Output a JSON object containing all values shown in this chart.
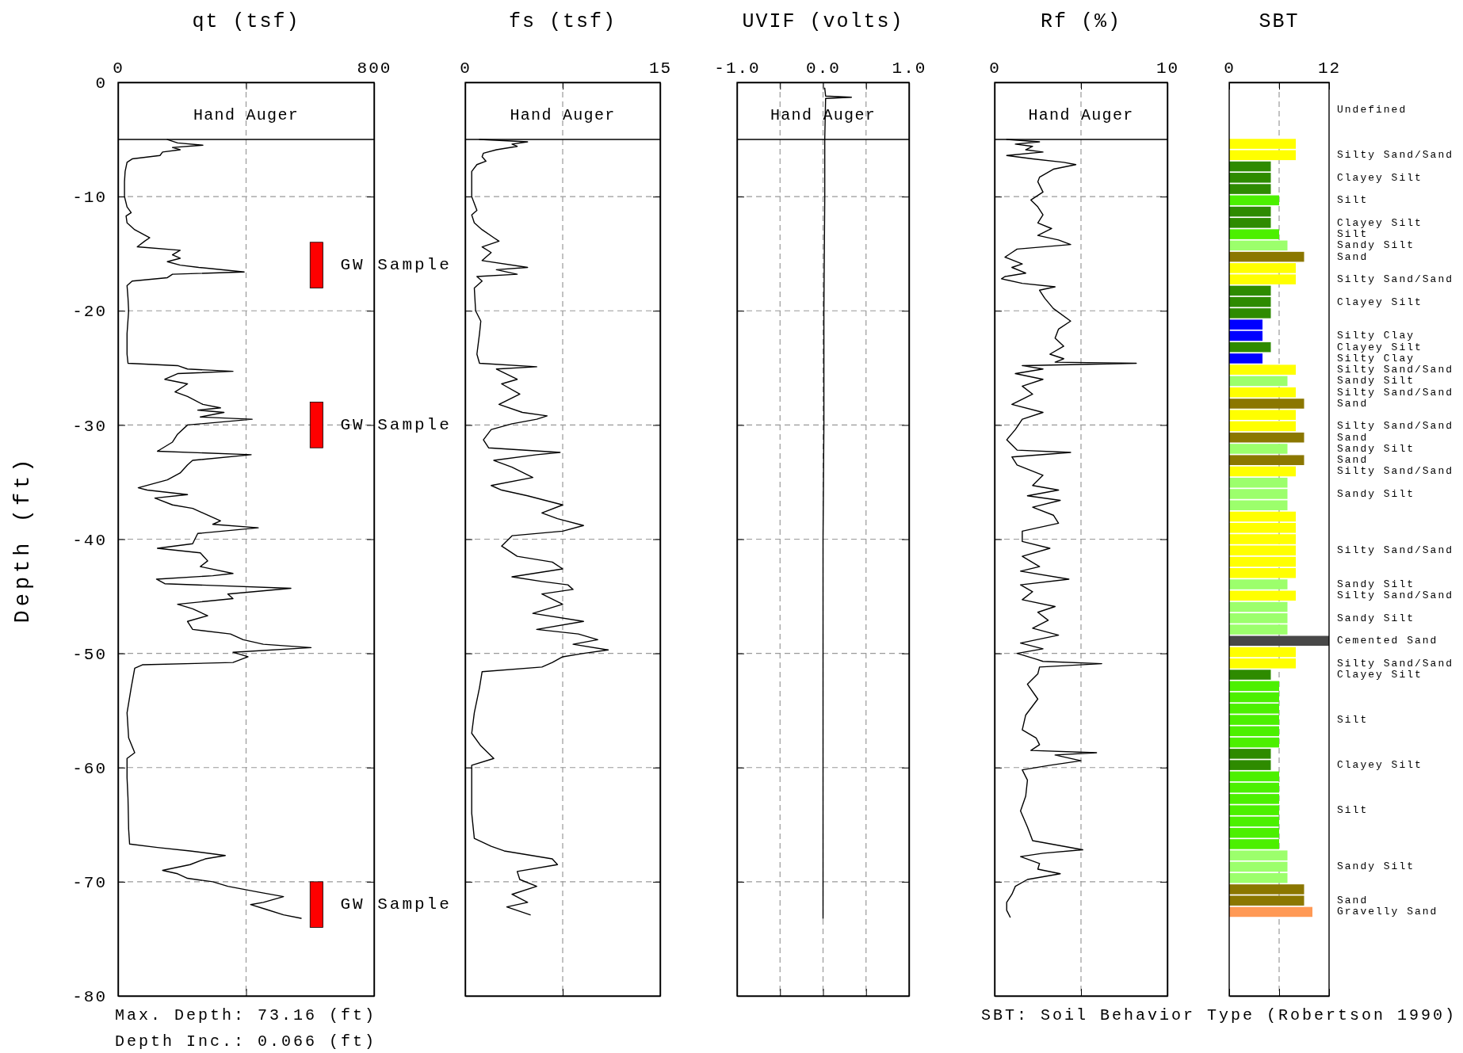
{
  "chart_data": [
    {
      "type": "line",
      "orientation": "horizontal",
      "title": "qt (tsf)",
      "ylabel": "Depth (ft)",
      "xlim": [
        0,
        800
      ],
      "xticks": [
        0,
        {
          "value": 400,
          "label": null
        },
        800
      ],
      "ylim": [
        -80,
        0
      ],
      "yticks": [
        0,
        -10,
        -20,
        -30,
        -40,
        -50,
        -60,
        -70,
        -80
      ],
      "grid": true,
      "series": [
        {
          "color": "#000000",
          "x": [
            -5.0,
            -5.3,
            -5.5,
            -5.7,
            -5.9,
            -6.1,
            -6.4,
            -6.7,
            -7.0,
            -7.8,
            -8.7,
            -10.0,
            -10.9,
            -11.4,
            -11.7,
            -12.3,
            -12.9,
            -13.6,
            -13.9,
            -14.4,
            -14.7,
            -15.1,
            -15.4,
            -15.7,
            -16.0,
            -16.2,
            -16.6,
            -16.8,
            -17.1,
            -17.4,
            -17.8,
            -18.9,
            -20.0,
            -22.0,
            -23.8,
            -24.6,
            -24.8,
            -25.1,
            -25.3,
            -25.5,
            -26.0,
            -26.4,
            -27.1,
            -27.5,
            -28.2,
            -28.5,
            -28.7,
            -28.9,
            -29.3,
            -29.5,
            -30.0,
            -30.8,
            -31.5,
            -32.3,
            -32.6,
            -33.1,
            -33.5,
            -34.2,
            -34.8,
            -35.5,
            -35.7,
            -36.1,
            -36.4,
            -37.0,
            -37.3,
            -37.9,
            -38.4,
            -38.7,
            -39.0,
            -39.5,
            -40.4,
            -40.8,
            -41.2,
            -41.9,
            -42.4,
            -43.0,
            -43.2,
            -43.5,
            -43.9,
            -44.3,
            -44.8,
            -45.2,
            -45.7,
            -46.1,
            -46.7,
            -47.2,
            -47.9,
            -48.3,
            -48.8,
            -49.2,
            -49.5,
            -49.9,
            -50.3,
            -50.8,
            -51.0,
            -51.3,
            -53.0,
            -55.2,
            -57.4,
            -58.7,
            -59.2,
            -60.9,
            -62.7,
            -65.4,
            -66.7,
            -67.0,
            -67.3,
            -67.7,
            -68.0,
            -68.5,
            -69.0,
            -69.3,
            -69.7,
            -70.0,
            -70.4,
            -70.9,
            -71.3,
            -71.8,
            -72.0,
            -72.4,
            -72.9,
            -73.2
          ],
          "values": [
            154,
            186,
            265,
            170,
            194,
            139,
            131,
            44,
            28,
            22,
            20,
            20,
            28,
            41,
            25,
            28,
            52,
            99,
            83,
            60,
            194,
            170,
            194,
            154,
            194,
            252,
            394,
            170,
            154,
            44,
            28,
            31,
            33,
            28,
            28,
            31,
            186,
            217,
            359,
            186,
            146,
            217,
            178,
            217,
            265,
            320,
            249,
            331,
            257,
            419,
            217,
            186,
            170,
            123,
            416,
            233,
            217,
            194,
            154,
            63,
            91,
            217,
            115,
            170,
            233,
            280,
            320,
            296,
            438,
            249,
            233,
            123,
            257,
            280,
            257,
            359,
            296,
            120,
            146,
            540,
            343,
            359,
            186,
            233,
            280,
            217,
            233,
            351,
            391,
            454,
            603,
            359,
            406,
            359,
            76,
            52,
            41,
            28,
            33,
            52,
            28,
            28,
            31,
            33,
            36,
            123,
            225,
            335,
            272,
            225,
            139,
            186,
            217,
            296,
            343,
            438,
            517,
            454,
            414,
            461,
            517,
            572
          ]
        }
      ],
      "ref_lines": [
        {
          "axis": "y",
          "value": -5,
          "label": "Hand Auger"
        }
      ],
      "bands": [
        {
          "axis": "y",
          "from": -14,
          "to": -18,
          "label": "GW Sample",
          "color": "#ff0000"
        },
        {
          "axis": "y",
          "from": -28,
          "to": -32,
          "label": "GW Sample",
          "color": "#ff0000"
        },
        {
          "axis": "y",
          "from": -70,
          "to": -74,
          "label": "GW Sample",
          "color": "#ff0000"
        }
      ],
      "annotations": [
        "Max. Depth: 73.16 (ft)",
        "Depth Inc.: 0.066 (ft)"
      ]
    },
    {
      "type": "line",
      "orientation": "horizontal",
      "title": "fs (tsf)",
      "xlim": [
        0,
        15
      ],
      "xticks": [
        0,
        {
          "value": 7.5,
          "label": null
        },
        15
      ],
      "ylim": [
        -80,
        0
      ],
      "yticks": [
        0,
        -10,
        -20,
        -30,
        -40,
        -50,
        -60,
        -70,
        -80
      ],
      "tick_labels": "x",
      "grid": true,
      "series": [
        {
          "color": "#000000",
          "x": [
            -5.0,
            -5.2,
            -5.4,
            -5.6,
            -5.9,
            -6.2,
            -6.5,
            -6.9,
            -7.2,
            -7.8,
            -8.7,
            -10.0,
            -11.2,
            -11.6,
            -12.3,
            -12.9,
            -13.6,
            -13.9,
            -14.4,
            -14.9,
            -15.6,
            -16.2,
            -16.4,
            -16.8,
            -17.0,
            -17.4,
            -18.0,
            -20.0,
            -20.9,
            -22.0,
            -23.8,
            -24.6,
            -24.9,
            -25.1,
            -26.0,
            -26.4,
            -27.3,
            -28.2,
            -28.9,
            -29.2,
            -29.5,
            -29.9,
            -30.4,
            -31.3,
            -32.0,
            -32.4,
            -32.6,
            -33.1,
            -33.7,
            -34.6,
            -35.3,
            -35.7,
            -36.2,
            -37.0,
            -37.7,
            -38.2,
            -38.8,
            -39.3,
            -39.7,
            -40.6,
            -41.5,
            -42.0,
            -42.6,
            -43.3,
            -43.7,
            -44.0,
            -44.4,
            -44.8,
            -45.7,
            -46.5,
            -47.2,
            -47.9,
            -48.3,
            -48.8,
            -49.2,
            -49.7,
            -50.0,
            -50.3,
            -50.8,
            -51.2,
            -51.6,
            -53.0,
            -55.2,
            -57.0,
            -58.1,
            -59.2,
            -59.8,
            -61.4,
            -64.0,
            -66.2,
            -66.9,
            -67.3,
            -68.0,
            -68.5,
            -69.1,
            -69.8,
            -70.4,
            -71.1,
            -71.8,
            -72.2,
            -72.9
          ],
          "values": [
            1.1,
            4.8,
            3.6,
            4.0,
            2.4,
            1.4,
            1.3,
            1.6,
            0.9,
            0.5,
            0.5,
            0.5,
            0.9,
            0.5,
            0.7,
            1.3,
            2.2,
            2.6,
            1.3,
            2.0,
            1.3,
            4.8,
            2.4,
            4.0,
            0.9,
            1.3,
            0.7,
            0.8,
            1.2,
            1.1,
            0.9,
            1.1,
            5.5,
            2.4,
            4.0,
            2.8,
            4.2,
            2.6,
            4.4,
            6.3,
            5.5,
            3.6,
            2.0,
            1.4,
            1.8,
            7.3,
            5.5,
            2.2,
            3.6,
            5.2,
            2.0,
            2.8,
            4.8,
            7.5,
            5.9,
            7.1,
            9.1,
            7.5,
            3.6,
            2.8,
            4.0,
            6.7,
            7.5,
            3.6,
            5.9,
            7.9,
            8.3,
            5.9,
            7.5,
            5.2,
            9.1,
            5.5,
            8.7,
            10.2,
            8.3,
            11.0,
            9.1,
            7.5,
            6.7,
            5.9,
            1.3,
            1.1,
            0.7,
            0.5,
            1.2,
            2.2,
            0.5,
            0.5,
            0.5,
            0.7,
            2.0,
            3.0,
            6.7,
            7.1,
            4.0,
            4.2,
            5.5,
            3.6,
            4.8,
            3.2,
            5.0
          ]
        }
      ],
      "ref_lines": [
        {
          "axis": "y",
          "value": -5,
          "label": "Hand Auger"
        }
      ]
    },
    {
      "type": "line",
      "orientation": "horizontal",
      "title": "UVIF (volts)",
      "xlim": [
        -1,
        1
      ],
      "xticks": [
        {
          "value": -1,
          "label": "-1.0"
        },
        {
          "value": -0.5,
          "label": null
        },
        {
          "value": 0,
          "label": "0.0"
        },
        {
          "value": 0.5,
          "label": null
        },
        {
          "value": 1,
          "label": "1.0"
        }
      ],
      "ylim": [
        -80,
        0
      ],
      "yticks": [
        0,
        -10,
        -20,
        -30,
        -40,
        -50,
        -60,
        -70,
        -80
      ],
      "tick_labels": "x",
      "grid": true,
      "series": [
        {
          "color": "#000000",
          "x": [
            -0.5,
            -1.2,
            -1.3,
            -1.4,
            -5.0,
            -10.0,
            -20.0,
            -30.0,
            -40.0,
            -50.0,
            -60.0,
            -73.2
          ],
          "values": [
            0.02,
            0.03,
            0.33,
            0.03,
            0.02,
            0.02,
            0.01,
            0.01,
            0.0,
            0.0,
            0.0,
            0.0
          ]
        }
      ],
      "ref_lines": [
        {
          "axis": "y",
          "value": -5,
          "label": "Hand Auger"
        }
      ]
    },
    {
      "type": "line",
      "orientation": "horizontal",
      "title": "Rf (%)",
      "xlim": [
        0,
        10
      ],
      "xticks": [
        0,
        {
          "value": 5,
          "label": null
        },
        10
      ],
      "ylim": [
        -80,
        0
      ],
      "yticks": [
        0,
        -10,
        -20,
        -30,
        -40,
        -50,
        -60,
        -70,
        -80
      ],
      "tick_labels": "x",
      "grid": true,
      "series": [
        {
          "color": "#000000",
          "x": [
            -5.0,
            -5.2,
            -5.4,
            -5.6,
            -5.9,
            -6.1,
            -6.4,
            -6.7,
            -7.0,
            -7.2,
            -7.6,
            -8.3,
            -8.7,
            -9.6,
            -10.3,
            -10.9,
            -11.6,
            -12.3,
            -12.8,
            -13.4,
            -13.8,
            -14.2,
            -14.6,
            -14.9,
            -15.3,
            -15.9,
            -16.2,
            -16.7,
            -17.0,
            -17.2,
            -17.6,
            -17.9,
            -18.2,
            -18.9,
            -19.8,
            -20.9,
            -21.6,
            -22.4,
            -23.1,
            -23.8,
            -24.2,
            -24.5,
            -24.6,
            -24.8,
            -25.1,
            -25.5,
            -26.0,
            -26.6,
            -27.3,
            -28.2,
            -28.9,
            -29.5,
            -30.4,
            -31.3,
            -32.2,
            -32.4,
            -32.8,
            -33.5,
            -34.4,
            -35.3,
            -35.7,
            -36.2,
            -36.6,
            -37.2,
            -37.9,
            -38.6,
            -39.3,
            -40.2,
            -40.8,
            -41.5,
            -42.4,
            -42.8,
            -43.5,
            -44.0,
            -44.6,
            -45.3,
            -45.9,
            -46.4,
            -47.1,
            -47.8,
            -48.4,
            -49.1,
            -49.6,
            -50.0,
            -50.5,
            -50.7,
            -50.9,
            -51.2,
            -51.8,
            -52.7,
            -54.0,
            -55.4,
            -56.7,
            -57.4,
            -58.0,
            -58.5,
            -58.7,
            -58.9,
            -59.4,
            -59.8,
            -60.2,
            -61.1,
            -62.5,
            -63.8,
            -65.2,
            -66.4,
            -67.2,
            -67.5,
            -67.8,
            -68.4,
            -68.9,
            -69.3,
            -69.8,
            -70.4,
            -71.1,
            -71.8,
            -72.5,
            -73.1
          ],
          "values": [
            0.7,
            2.6,
            1.2,
            2.2,
            1.8,
            2.8,
            0.7,
            2.2,
            4.0,
            4.7,
            3.4,
            2.6,
            2.5,
            2.8,
            2.1,
            2.5,
            2.8,
            2.5,
            3.3,
            2.5,
            3.7,
            4.4,
            1.3,
            1.0,
            0.6,
            1.6,
            1.0,
            1.8,
            0.6,
            0.4,
            1.6,
            3.5,
            2.6,
            2.9,
            3.4,
            4.4,
            3.7,
            3.5,
            4.0,
            3.2,
            4.0,
            3.5,
            8.2,
            1.6,
            2.8,
            1.2,
            2.8,
            1.6,
            2.2,
            1.0,
            2.8,
            1.6,
            1.2,
            0.7,
            1.3,
            4.4,
            1.0,
            1.3,
            2.8,
            2.2,
            3.7,
            1.9,
            3.8,
            2.2,
            3.4,
            3.7,
            1.6,
            1.6,
            3.2,
            1.6,
            2.6,
            1.5,
            4.3,
            1.5,
            2.2,
            1.6,
            3.5,
            2.5,
            3.1,
            2.2,
            3.7,
            1.5,
            2.8,
            1.3,
            2.4,
            2.8,
            6.2,
            2.6,
            2.5,
            1.9,
            2.5,
            1.8,
            1.6,
            2.4,
            2.6,
            2.1,
            5.9,
            3.5,
            5.0,
            3.2,
            1.6,
            1.9,
            1.8,
            1.5,
            1.9,
            2.2,
            5.1,
            2.8,
            1.5,
            2.6,
            2.5,
            3.8,
            1.9,
            1.2,
            1.0,
            0.7,
            0.7,
            0.9
          ]
        }
      ],
      "ref_lines": [
        {
          "axis": "y",
          "value": -5,
          "label": "Hand Auger"
        }
      ]
    },
    {
      "type": "bar",
      "orientation": "horizontal",
      "title": "SBT",
      "xlim": [
        0,
        12
      ],
      "xticks": [
        0,
        {
          "value": 6,
          "label": null
        },
        12
      ],
      "grid": "x",
      "categories": [
        null,
        null,
        "Undefined",
        null,
        null,
        null,
        "Silty Sand/Sand",
        null,
        "Clayey Silt",
        null,
        "Silt",
        null,
        "Clayey Silt",
        "Silt",
        "Sandy Silt",
        "Sand",
        null,
        "Silty Sand/Sand",
        null,
        "Clayey Silt",
        null,
        null,
        "Silty Clay",
        "Clayey Silt",
        "Silty Clay",
        "Silty Sand/Sand",
        "Sandy Silt",
        "Silty Sand/Sand",
        "Sand",
        null,
        "Silty Sand/Sand",
        "Sand",
        "Sandy Silt",
        "Sand",
        "Silty Sand/Sand",
        null,
        "Sandy Silt",
        null,
        null,
        null,
        null,
        "Silty Sand/Sand",
        null,
        null,
        "Sandy Silt",
        "Silty Sand/Sand",
        null,
        "Sandy Silt",
        null,
        "Cemented Sand",
        null,
        "Silty Sand/Sand",
        "Clayey Silt",
        null,
        null,
        null,
        "Silt",
        null,
        null,
        null,
        "Clayey Silt",
        null,
        null,
        null,
        "Silt",
        null,
        null,
        null,
        null,
        "Sandy Silt",
        null,
        null,
        "Sand",
        "Gravelly Sand",
        null,
        null,
        null,
        null,
        null,
        null,
        null
      ],
      "values": [
        null,
        null,
        null,
        null,
        null,
        8,
        8,
        5,
        5,
        5,
        6,
        5,
        5,
        6,
        7,
        9,
        8,
        8,
        5,
        5,
        5,
        4,
        4,
        5,
        4,
        8,
        7,
        8,
        9,
        8,
        8,
        9,
        7,
        9,
        8,
        7,
        7,
        7,
        8,
        8,
        8,
        8,
        8,
        8,
        7,
        8,
        7,
        7,
        7,
        12,
        8,
        8,
        5,
        6,
        6,
        6,
        6,
        6,
        6,
        5,
        5,
        6,
        6,
        6,
        6,
        6,
        6,
        6,
        7,
        7,
        7,
        9,
        9,
        10,
        null,
        null,
        null,
        null,
        null,
        null,
        null
      ],
      "colors": [
        null,
        null,
        null,
        null,
        null,
        "#ffff00",
        "#ffff00",
        "#2e8b00",
        "#2e8b00",
        "#2e8b00",
        "#4cf000",
        "#2e8b00",
        "#2e8b00",
        "#4cf000",
        "#9cff6c",
        "#8b7700",
        "#ffff00",
        "#ffff00",
        "#2e8b00",
        "#2e8b00",
        "#2e8b00",
        "#0000ff",
        "#0000ff",
        "#2e8b00",
        "#0000ff",
        "#ffff00",
        "#9cff6c",
        "#ffff00",
        "#8b7700",
        "#ffff00",
        "#ffff00",
        "#8b7700",
        "#9cff6c",
        "#8b7700",
        "#ffff00",
        "#9cff6c",
        "#9cff6c",
        "#9cff6c",
        "#ffff00",
        "#ffff00",
        "#ffff00",
        "#ffff00",
        "#ffff00",
        "#ffff00",
        "#9cff6c",
        "#ffff00",
        "#9cff6c",
        "#9cff6c",
        "#9cff6c",
        "#484848",
        "#ffff00",
        "#ffff00",
        "#2e8b00",
        "#4cf000",
        "#4cf000",
        "#4cf000",
        "#4cf000",
        "#4cf000",
        "#4cf000",
        "#2e8b00",
        "#2e8b00",
        "#4cf000",
        "#4cf000",
        "#4cf000",
        "#4cf000",
        "#4cf000",
        "#4cf000",
        "#4cf000",
        "#9cff6c",
        "#9cff6c",
        "#9cff6c",
        "#8b7700",
        "#8b7700",
        "#ff9955",
        null,
        null,
        null,
        null,
        null,
        null,
        null
      ],
      "annotations": [
        "SBT: Soil Behavior Type (Robertson 1990)"
      ]
    }
  ]
}
